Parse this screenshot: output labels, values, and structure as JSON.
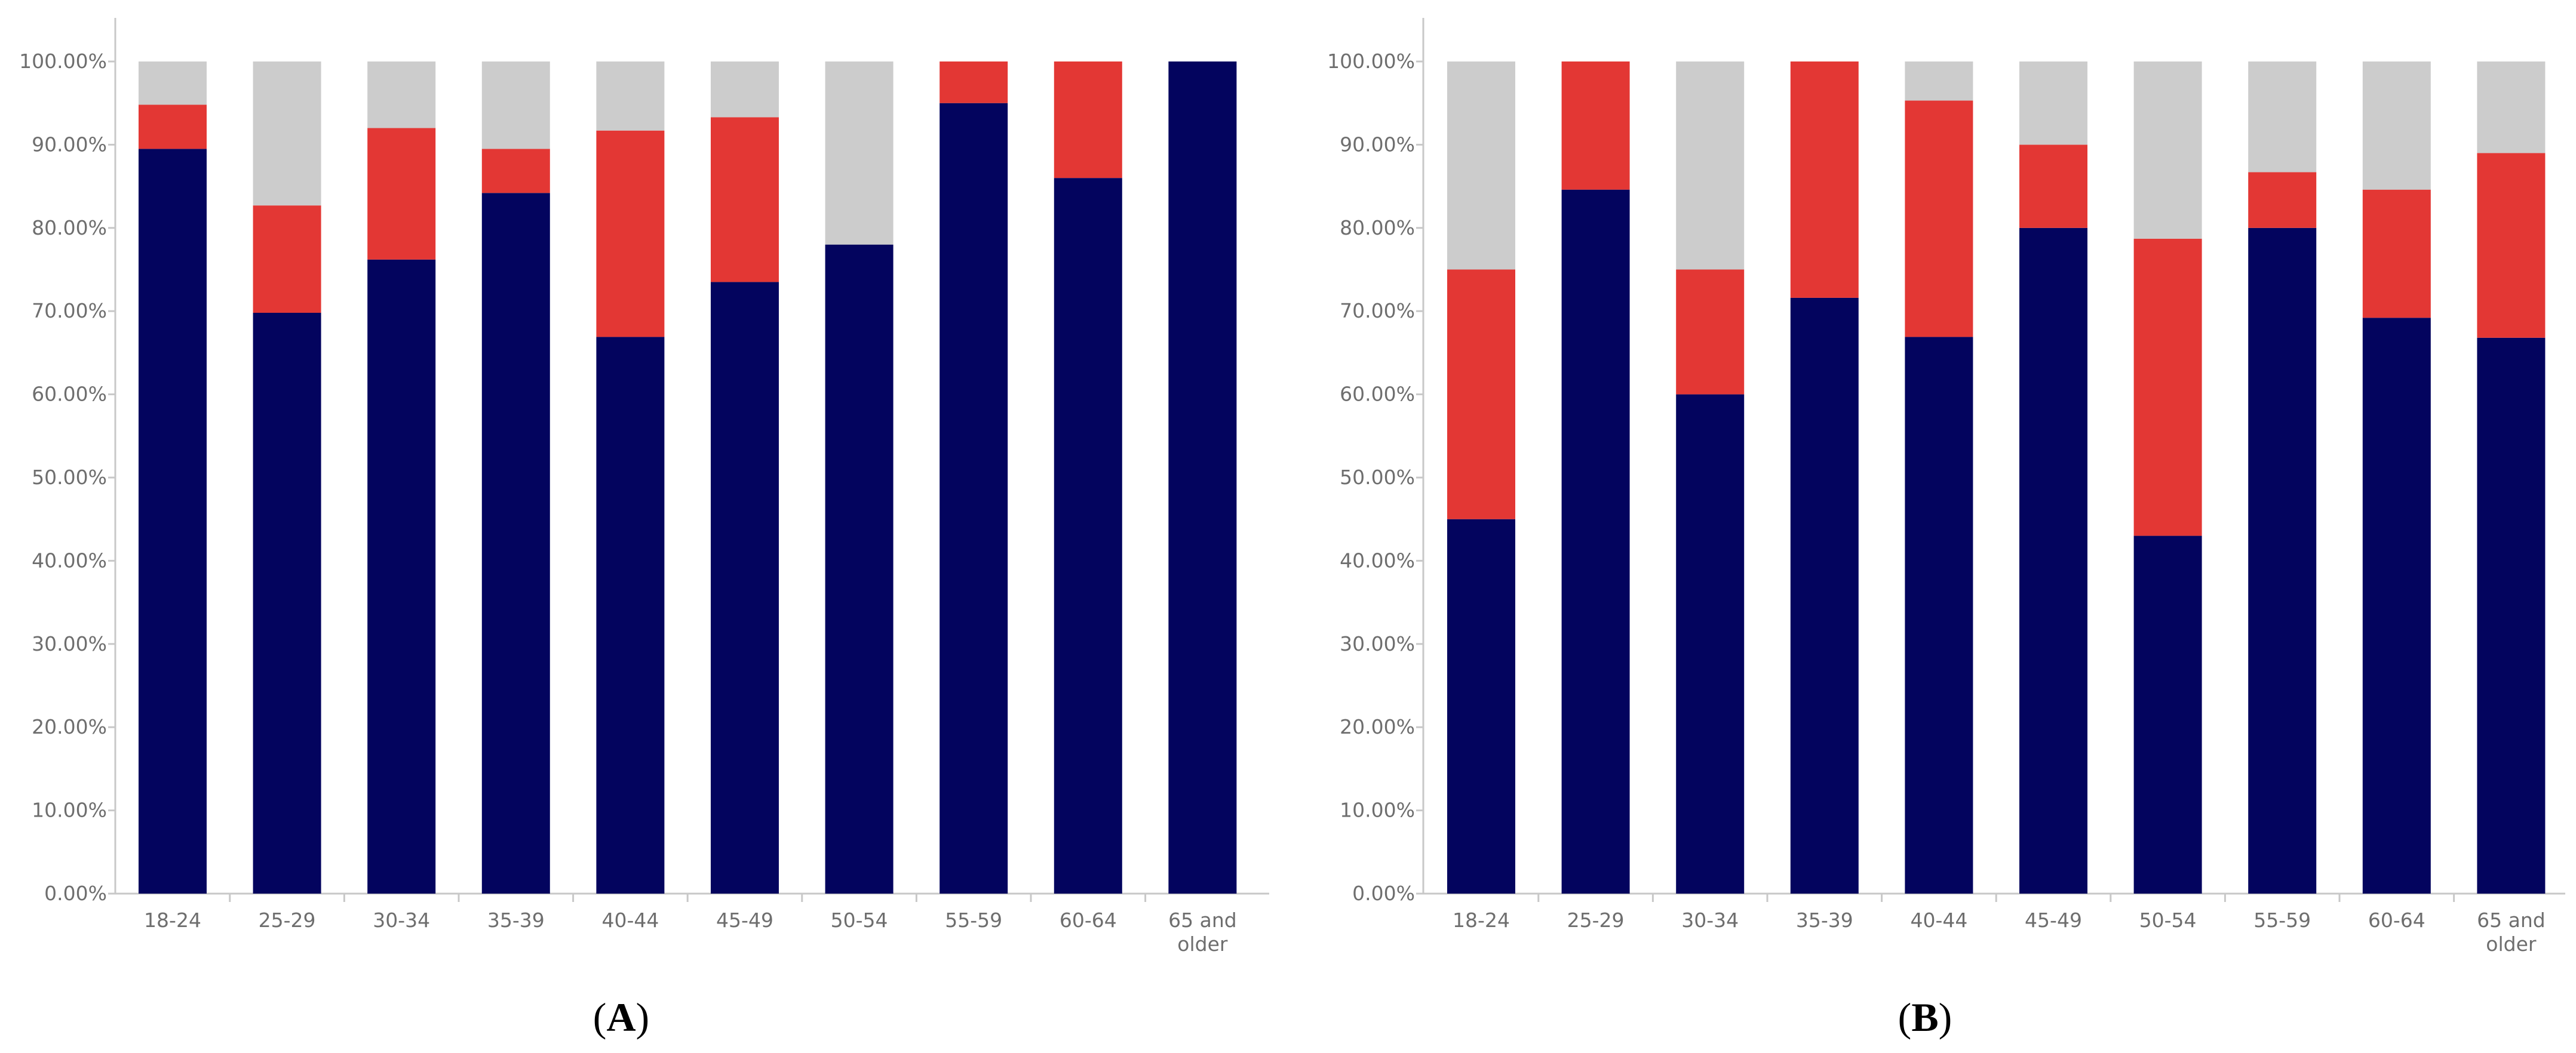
{
  "colors": {
    "series1": "#03045e",
    "series2": "#e33734",
    "series3": "#cccccc",
    "axis": "#c8c8c8",
    "tick_text": "#6e6e6e"
  },
  "chart_data": [
    {
      "type": "bar",
      "stacked": true,
      "panel_label_open": "(",
      "panel_label": "A",
      "panel_label_close": ")",
      "categories": [
        "18-24",
        "25-29",
        "30-34",
        "35-39",
        "40-44",
        "45-49",
        "50-54",
        "55-59",
        "60-64",
        [
          "65 and",
          "older"
        ]
      ],
      "series": [
        {
          "name": "series1",
          "values": [
            89.5,
            69.8,
            76.2,
            84.2,
            66.9,
            73.5,
            78.0,
            95.0,
            86.0,
            100.0
          ]
        },
        {
          "name": "series2",
          "values": [
            5.3,
            12.9,
            15.8,
            5.3,
            24.8,
            19.8,
            0.0,
            5.0,
            14.0,
            0.0
          ]
        },
        {
          "name": "series3",
          "values": [
            5.2,
            17.3,
            8.0,
            10.5,
            8.3,
            6.7,
            22.0,
            0.0,
            0.0,
            0.0
          ]
        }
      ],
      "ylim": [
        0,
        100
      ],
      "yticks": [
        "0.00%",
        "10.00%",
        "20.00%",
        "30.00%",
        "40.00%",
        "50.00%",
        "60.00%",
        "70.00%",
        "80.00%",
        "90.00%",
        "100.00%"
      ]
    },
    {
      "type": "bar",
      "stacked": true,
      "panel_label_open": "(",
      "panel_label": "B",
      "panel_label_close": ")",
      "categories": [
        "18-24",
        "25-29",
        "30-34",
        "35-39",
        "40-44",
        "45-49",
        "50-54",
        "55-59",
        "60-64",
        [
          "65 and",
          "older"
        ]
      ],
      "series": [
        {
          "name": "series1",
          "values": [
            45.0,
            84.6,
            60.0,
            71.6,
            66.9,
            80.0,
            43.0,
            80.0,
            69.2,
            66.8
          ]
        },
        {
          "name": "series2",
          "values": [
            30.0,
            15.4,
            15.0,
            28.4,
            28.4,
            10.0,
            35.7,
            6.7,
            15.4,
            22.2
          ]
        },
        {
          "name": "series3",
          "values": [
            25.0,
            0.0,
            25.0,
            0.0,
            4.7,
            10.0,
            21.3,
            13.3,
            15.4,
            11.0
          ]
        }
      ],
      "ylim": [
        0,
        100
      ],
      "yticks": [
        "0.00%",
        "10.00%",
        "20.00%",
        "30.00%",
        "40.00%",
        "50.00%",
        "60.00%",
        "70.00%",
        "80.00%",
        "90.00%",
        "100.00%"
      ]
    }
  ]
}
